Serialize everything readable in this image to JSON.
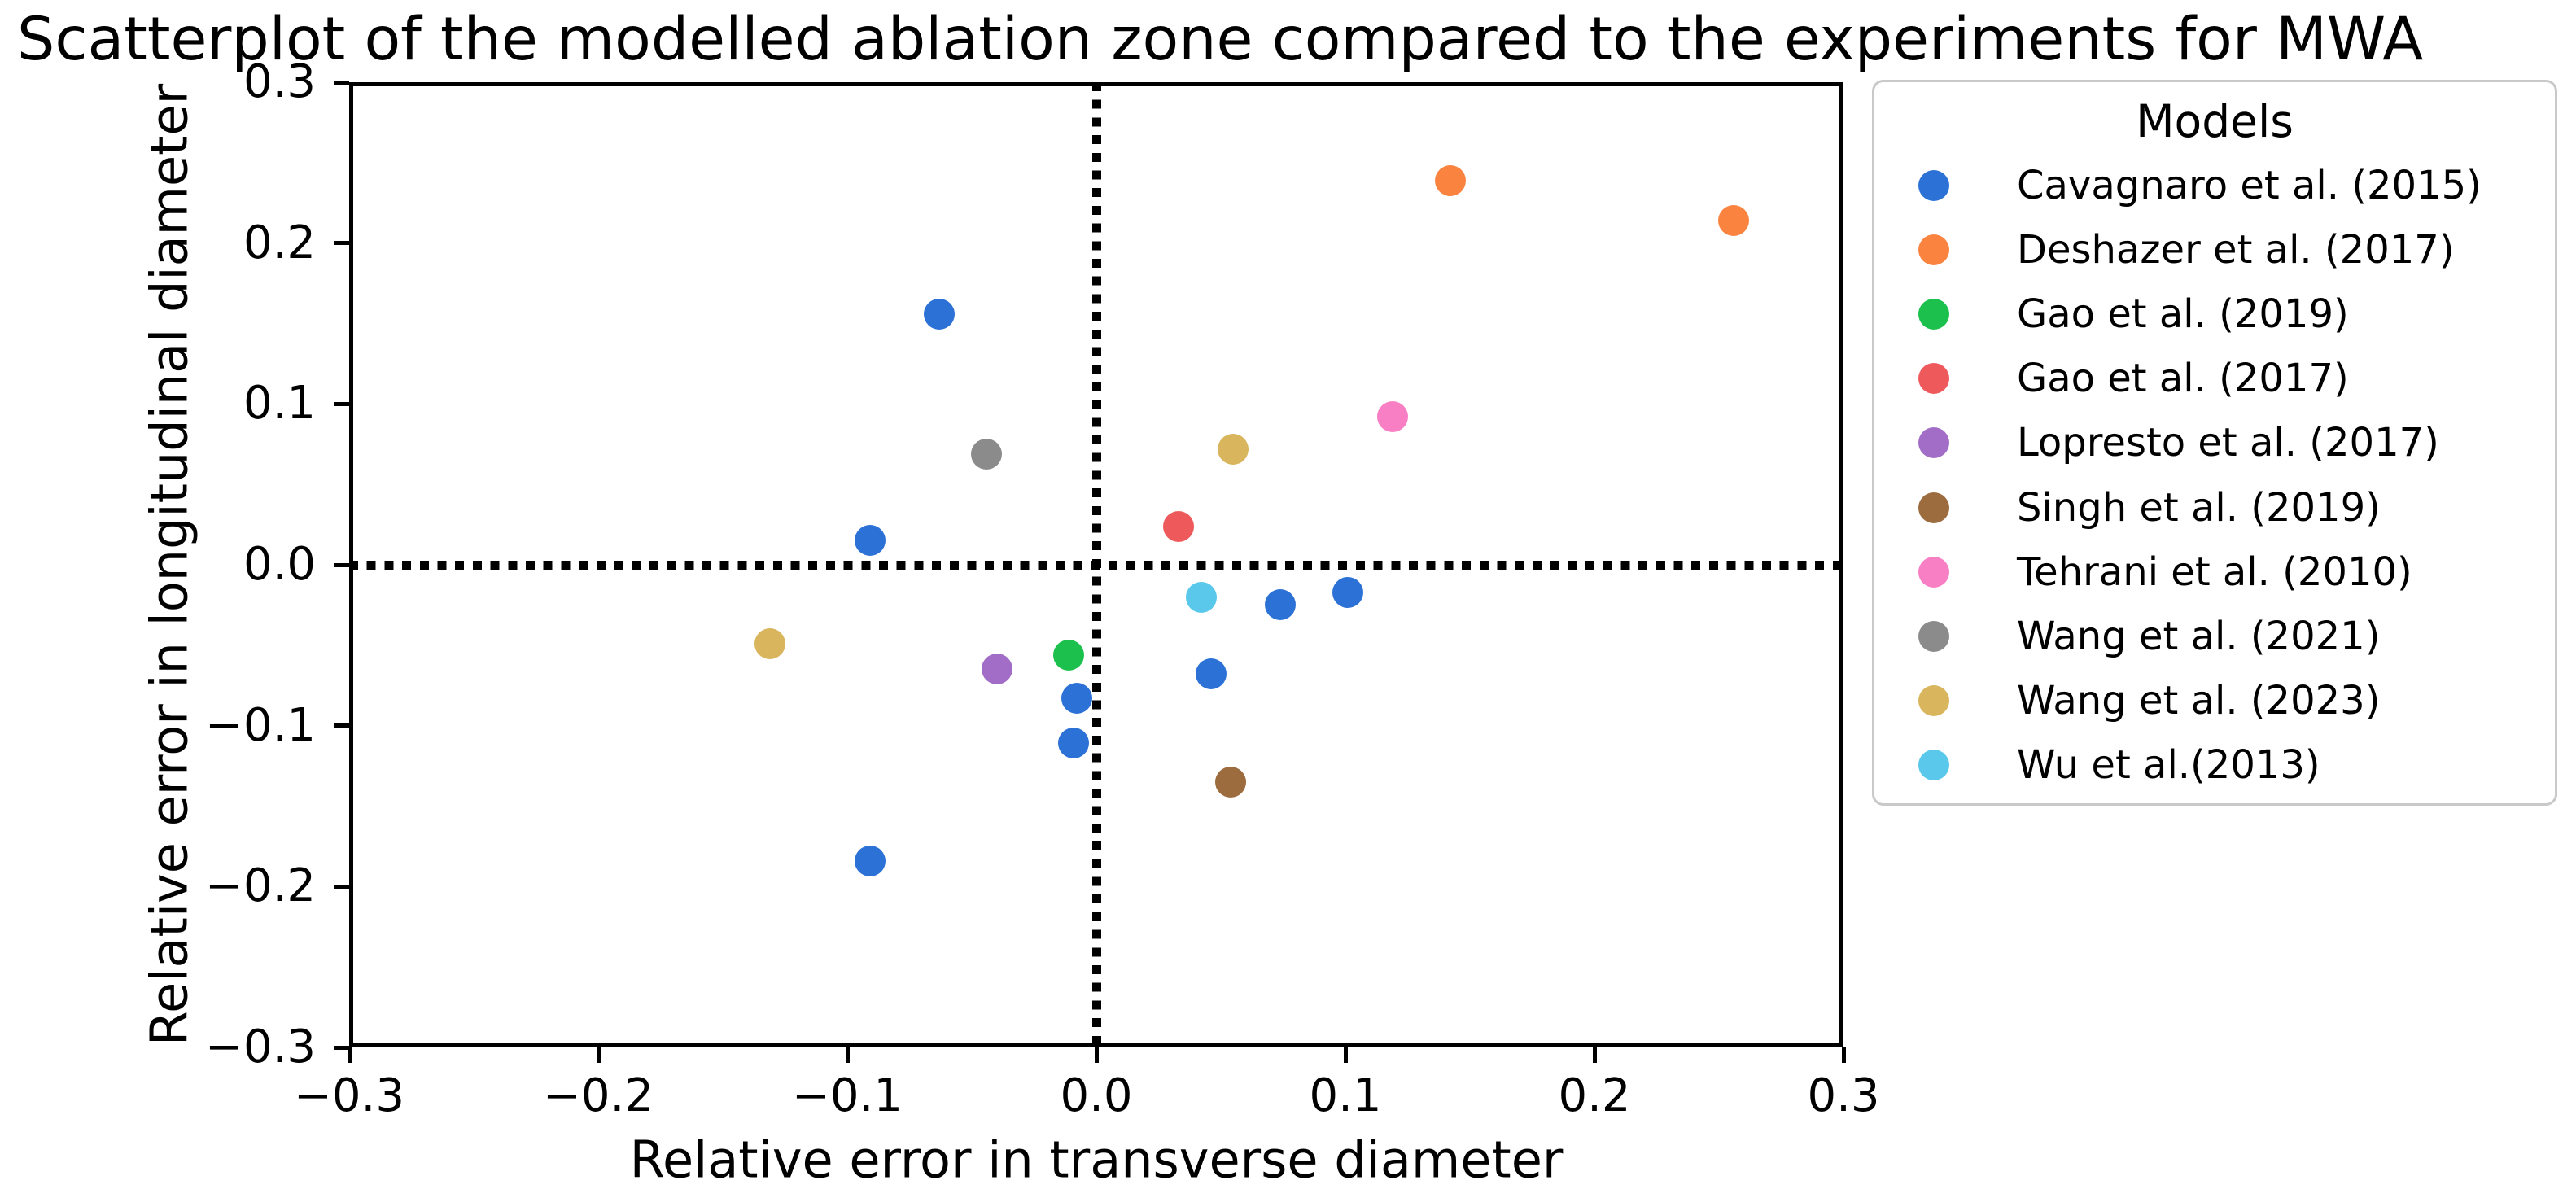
{
  "chart_data": {
    "type": "scatter",
    "title": "Scatterplot of the modelled ablation zone compared to the experiments for MWA",
    "xlabel": "Relative error in transverse diameter",
    "ylabel": "Relative error in longitudinal diameter",
    "xlim": [
      -0.3,
      0.3
    ],
    "ylim": [
      -0.3,
      0.3
    ],
    "x_ticks": [
      -0.3,
      -0.2,
      -0.1,
      0.0,
      0.1,
      0.2,
      0.3
    ],
    "y_ticks": [
      -0.3,
      -0.2,
      -0.1,
      0.0,
      0.1,
      0.2,
      0.3
    ],
    "x_tick_labels": [
      "−0.3",
      "−0.2",
      "−0.1",
      "0.0",
      "0.1",
      "0.2",
      "0.3"
    ],
    "y_tick_labels": [
      "−0.3",
      "−0.2",
      "−0.1",
      "0.0",
      "0.1",
      "0.2",
      "0.3"
    ],
    "grid": false,
    "reference_lines": [
      {
        "axis": "y",
        "value": 0.0,
        "style": "dotted",
        "color": "#000000"
      },
      {
        "axis": "x",
        "value": 0.0,
        "style": "dotted",
        "color": "#000000"
      }
    ],
    "legend": {
      "title": "Models",
      "position": "outside upper right",
      "border_color": "#c9c9c9"
    },
    "series": [
      {
        "name": "Cavagnaro et al. (2015)",
        "color": "#2C71D6",
        "points": [
          [
            -0.063,
            0.156
          ],
          [
            -0.091,
            0.015
          ],
          [
            0.074,
            -0.025
          ],
          [
            0.101,
            -0.017
          ],
          [
            0.046,
            -0.068
          ],
          [
            -0.008,
            -0.083
          ],
          [
            -0.009,
            -0.111
          ],
          [
            -0.091,
            -0.184
          ]
        ]
      },
      {
        "name": "Deshazer et al. (2017)",
        "color": "#FA8340",
        "points": [
          [
            0.142,
            0.239
          ],
          [
            0.256,
            0.214
          ]
        ]
      },
      {
        "name": "Gao et al. (2019)",
        "color": "#1CC14D",
        "points": [
          [
            -0.011,
            -0.056
          ]
        ]
      },
      {
        "name": "Gao et al. (2017)",
        "color": "#EE5A5C",
        "points": [
          [
            0.033,
            0.024
          ]
        ]
      },
      {
        "name": "Lopresto et al. (2017)",
        "color": "#A26DC6",
        "points": [
          [
            -0.04,
            -0.065
          ]
        ]
      },
      {
        "name": "Singh et al. (2019)",
        "color": "#9C6B3E",
        "points": [
          [
            0.054,
            -0.135
          ]
        ]
      },
      {
        "name": "Tehrani et al. (2010)",
        "color": "#F87FC4",
        "points": [
          [
            0.119,
            0.092
          ]
        ]
      },
      {
        "name": "Wang et al. (2021)",
        "color": "#8B8B8B",
        "points": [
          [
            -0.044,
            0.069
          ]
        ]
      },
      {
        "name": "Wang et al. (2023)",
        "color": "#D9B65E",
        "points": [
          [
            -0.131,
            -0.049
          ],
          [
            0.055,
            0.072
          ]
        ]
      },
      {
        "name": "Wu et al.(2013)",
        "color": "#59C8EB",
        "points": [
          [
            0.042,
            -0.02
          ]
        ]
      }
    ]
  }
}
